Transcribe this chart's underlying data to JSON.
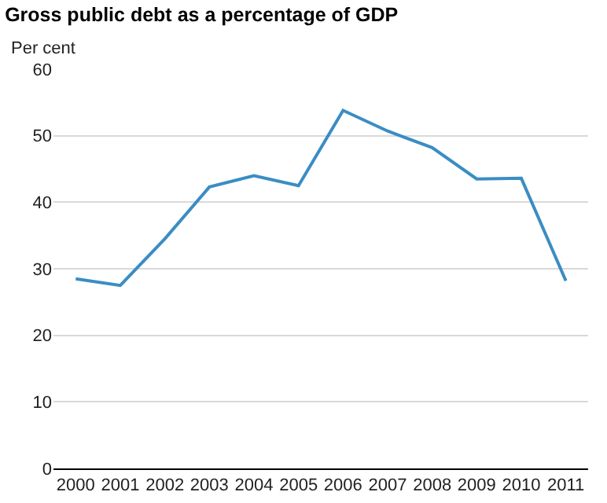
{
  "chart_data": {
    "type": "line",
    "title": "Gross public debt as a percentage of GDP",
    "ylabel": "Per cent",
    "categories": [
      "2000",
      "2001",
      "2002",
      "2003",
      "2004",
      "2005",
      "2006",
      "2007",
      "2008",
      "2009",
      "2010",
      "2011"
    ],
    "series": [
      {
        "color": "#3a8dc4",
        "values": [
          28.5,
          27.5,
          34.5,
          42.3,
          44.0,
          42.5,
          53.8,
          50.7,
          48.2,
          43.5,
          43.6,
          28.2
        ]
      }
    ],
    "ylim": [
      0,
      60
    ],
    "yticks": [
      0,
      10,
      20,
      30,
      40,
      50,
      60
    ],
    "grid": "y",
    "marker": "none",
    "line_style": "solid"
  }
}
